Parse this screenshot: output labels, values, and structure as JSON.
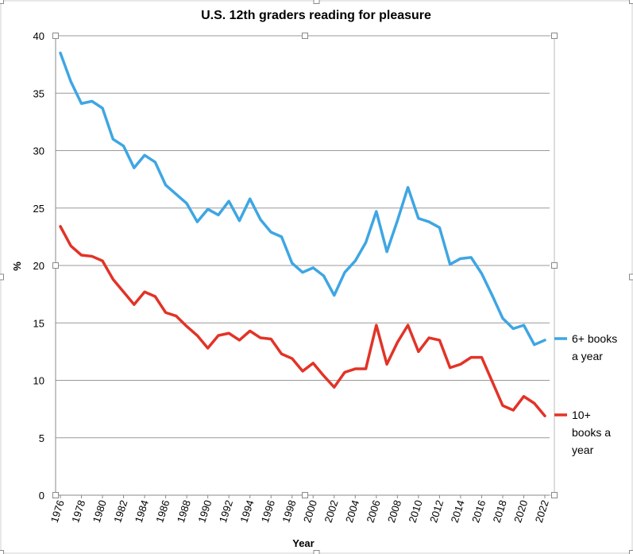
{
  "colors": {
    "series_6plus": "#3ea6e3",
    "series_10plus": "#e23327",
    "gridline": "#999999",
    "axis": "#888888",
    "frame": "#cccccc"
  },
  "chart_data": {
    "type": "line",
    "title": "U.S. 12th graders reading for pleasure",
    "xlabel": "Year",
    "ylabel": "%",
    "xlim": [
      1976,
      2022
    ],
    "ylim": [
      0,
      40
    ],
    "yticks": [
      "0",
      "5",
      "10",
      "15",
      "20",
      "25",
      "30",
      "35",
      "40"
    ],
    "xticks": [
      "1976",
      "1978",
      "1980",
      "1982",
      "1984",
      "1986",
      "1988",
      "1990",
      "1992",
      "1994",
      "1996",
      "1998",
      "2000",
      "2002",
      "2004",
      "2006",
      "2008",
      "2010",
      "2012",
      "2014",
      "2016",
      "2018",
      "2020",
      "2022"
    ],
    "grid": "horizontal",
    "legend_placement": "right",
    "x": [
      1976,
      1977,
      1978,
      1979,
      1980,
      1981,
      1982,
      1983,
      1984,
      1985,
      1986,
      1987,
      1988,
      1989,
      1990,
      1991,
      1992,
      1993,
      1994,
      1995,
      1996,
      1997,
      1998,
      1999,
      2000,
      2001,
      2002,
      2003,
      2004,
      2005,
      2006,
      2007,
      2008,
      2009,
      2010,
      2011,
      2012,
      2013,
      2014,
      2015,
      2016,
      2017,
      2018,
      2019,
      2020,
      2021,
      2022
    ],
    "series": [
      {
        "name": "6+ books a year",
        "legend_lines": [
          "6+ books",
          "a year"
        ],
        "values": [
          38.5,
          36.0,
          34.1,
          34.3,
          33.7,
          31.0,
          30.4,
          28.5,
          29.6,
          29.0,
          27.0,
          26.2,
          25.4,
          23.8,
          24.9,
          24.4,
          25.6,
          23.9,
          25.8,
          24.0,
          22.9,
          22.5,
          20.2,
          19.4,
          19.8,
          19.1,
          17.4,
          19.4,
          20.4,
          22.0,
          24.7,
          21.2,
          23.9,
          26.8,
          24.1,
          23.8,
          23.3,
          20.1,
          20.6,
          20.7,
          19.3,
          17.4,
          15.4,
          14.5,
          14.8,
          13.1,
          13.5
        ]
      },
      {
        "name": "10+ books a year",
        "legend_lines": [
          "10+",
          "books a",
          "year"
        ],
        "values": [
          23.4,
          21.7,
          20.9,
          20.8,
          20.4,
          18.8,
          17.7,
          16.6,
          17.7,
          17.3,
          15.9,
          15.6,
          14.7,
          13.9,
          12.8,
          13.9,
          14.1,
          13.5,
          14.3,
          13.7,
          13.6,
          12.3,
          11.9,
          10.8,
          11.5,
          10.4,
          9.4,
          10.7,
          11.0,
          11.0,
          14.8,
          11.4,
          13.3,
          14.8,
          12.5,
          13.7,
          13.5,
          11.1,
          11.4,
          12.0,
          12.0,
          9.9,
          7.8,
          7.4,
          8.6,
          8.0,
          6.9
        ]
      }
    ]
  }
}
